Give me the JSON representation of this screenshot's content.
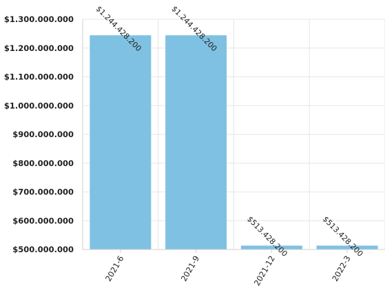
{
  "chart_data": {
    "type": "bar",
    "categories": [
      "2021-6",
      "2021-9",
      "2021-12",
      "2022-3"
    ],
    "values": [
      1244428200,
      1244428200,
      513428200,
      513428200
    ],
    "value_labels": [
      "$1.244.428.200",
      "$1.244.428.200",
      "$513.428.200",
      "$513.428.200"
    ],
    "ylim": [
      500000000,
      1300000000
    ],
    "yticks": [
      500000000,
      600000000,
      700000000,
      800000000,
      900000000,
      1000000000,
      1100000000,
      1200000000,
      1300000000
    ],
    "ytick_labels": [
      "$500.000.000",
      "$600.000.000",
      "$700.000.000",
      "$800.000.000",
      "$900.000.000",
      "$1.000.000.000",
      "$1.100.000.000",
      "$1.200.000.000",
      "$1.300.000.000"
    ],
    "grid": true,
    "bar_color": "#7fc1e2",
    "grid_color": "#e6e6e6",
    "axis_color": "#cfcfcf"
  }
}
